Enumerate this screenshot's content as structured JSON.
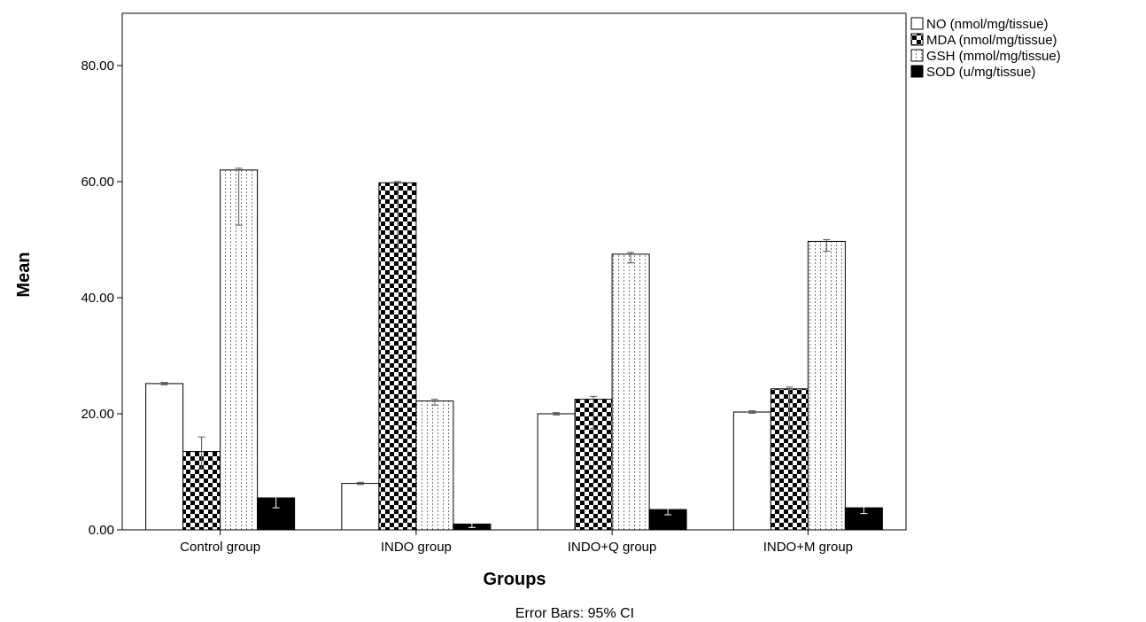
{
  "chart_data": {
    "type": "bar",
    "categories": [
      "Control group",
      "INDO group",
      "INDO+Q group",
      "INDO+M group"
    ],
    "series": [
      {
        "name": "NO (nmol/mg/tissue)",
        "values": [
          25.2,
          8.0,
          20.0,
          20.3
        ],
        "ci_low": [
          25.0,
          7.8,
          19.8,
          20.1
        ],
        "ci_high": [
          25.4,
          8.2,
          20.2,
          20.5
        ],
        "pattern": "none"
      },
      {
        "name": "MDA (nmol/mg/tissue)",
        "values": [
          13.5,
          59.8,
          22.5,
          24.3
        ],
        "ci_low": [
          10.5,
          48.5,
          17.5,
          17.0
        ],
        "ci_high": [
          16.0,
          60.0,
          23.0,
          24.6
        ],
        "pattern": "checker"
      },
      {
        "name": "GSH (mmol/mg/tissue)",
        "values": [
          62.0,
          22.2,
          47.5,
          49.7
        ],
        "ci_low": [
          52.5,
          21.5,
          46.0,
          48.0
        ],
        "ci_high": [
          62.3,
          22.5,
          47.8,
          50.0
        ],
        "pattern": "dotted"
      },
      {
        "name": "SOD (u/mg/tissue)",
        "values": [
          5.5,
          1.0,
          3.5,
          3.8
        ],
        "ci_low": [
          3.8,
          0.4,
          2.6,
          2.8
        ],
        "ci_high": [
          5.7,
          1.2,
          3.7,
          4.0
        ],
        "pattern": "solid"
      }
    ],
    "xlabel": "Groups",
    "ylabel": "Mean",
    "ylim": [
      0,
      89
    ],
    "yticks": [
      0,
      20,
      40,
      60,
      80
    ],
    "ytick_labels": [
      "0.00",
      "20.00",
      "40.00",
      "60.00",
      "80.00"
    ],
    "legend_position": "top-right",
    "grid": false,
    "footnote": "Error Bars: 95% CI"
  }
}
